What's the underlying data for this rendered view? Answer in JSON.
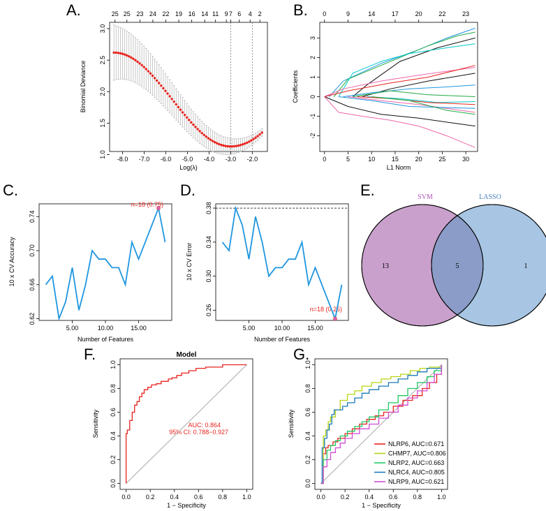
{
  "panels": {
    "A": {
      "letter": "A."
    },
    "B": {
      "letter": "B."
    },
    "C": {
      "letter": "C."
    },
    "D": {
      "letter": "D."
    },
    "E": {
      "letter": "E."
    },
    "F": {
      "letter": "F."
    },
    "G": {
      "letter": "G."
    }
  },
  "colors": {
    "red": "#e8231e",
    "blue": "#1f96e0",
    "grey": "#bbbbbb",
    "svm_fill": "#c9a0cc",
    "lasso_fill": "#a8c6e4",
    "overlap_fill": "#8a9cc7"
  },
  "chart_data": [
    {
      "id": "A",
      "type": "scatter",
      "title": "",
      "xlabel": "Log(λ)",
      "ylabel": "Binomial Deviance",
      "xlim": [
        -8.6,
        -1.3
      ],
      "ylim": [
        1.05,
        3.1
      ],
      "xticks": [
        -8,
        -7,
        -6,
        -5,
        -4,
        -3,
        -2
      ],
      "yticks": [
        1.0,
        1.5,
        2.0,
        2.5,
        3.0
      ],
      "top_ticks": {
        "x": [
          -8.35,
          -7.8,
          -7.2,
          -6.6,
          -6.0,
          -5.4,
          -4.8,
          -4.2,
          -3.7,
          -3.2,
          -3.0,
          -2.6,
          -2.1,
          -1.65
        ],
        "labels": [
          "25",
          "25",
          "23",
          "24",
          "22",
          "19",
          "16",
          "14",
          "11",
          "9",
          "7",
          "6",
          "4",
          "2"
        ]
      },
      "vlines": [
        -3.0,
        -2.0
      ],
      "curve": {
        "x_start": -8.4,
        "x_end": -1.55,
        "count": 70,
        "y_start": 2.62,
        "y_min": 1.13,
        "x_min": -3.0,
        "y_end": 1.35,
        "err_start": 0.44,
        "err_end": 0.06
      }
    },
    {
      "id": "B",
      "type": "line",
      "title": "",
      "xlabel": "L1 Norm",
      "ylabel": "Coefficients",
      "xlim": [
        -1,
        32.5
      ],
      "ylim": [
        -2.8,
        3.8
      ],
      "xticks": [
        0,
        5,
        10,
        15,
        20,
        25,
        30
      ],
      "yticks": [
        -2,
        -1,
        0,
        1,
        2,
        3
      ],
      "top_ticks": {
        "x": [
          0,
          5,
          10,
          15,
          20,
          25,
          30
        ],
        "labels": [
          "0",
          "9",
          "14",
          "17",
          "20",
          "22",
          "23"
        ]
      },
      "series": [
        {
          "color": "#1f96e0",
          "x": [
            1,
            4,
            12,
            20,
            26,
            32
          ],
          "y": [
            0,
            0.8,
            1.7,
            2.4,
            3.0,
            3.5
          ]
        },
        {
          "color": "#22aa44",
          "x": [
            2,
            5,
            14,
            22,
            28,
            32
          ],
          "y": [
            0,
            0.9,
            1.8,
            2.6,
            3.1,
            3.3
          ]
        },
        {
          "color": "#111111",
          "x": [
            6,
            9,
            16,
            24,
            32
          ],
          "y": [
            0,
            0.6,
            1.8,
            2.5,
            3.0
          ]
        },
        {
          "color": "#00c8c8",
          "x": [
            3,
            6,
            12,
            18,
            26,
            32
          ],
          "y": [
            0,
            1.2,
            1.8,
            2.2,
            2.5,
            2.7
          ]
        },
        {
          "color": "#ee66aa",
          "x": [
            0,
            4,
            12,
            20,
            26,
            32
          ],
          "y": [
            0,
            0.4,
            0.8,
            1.1,
            1.3,
            1.5
          ]
        },
        {
          "color": "#e8231e",
          "x": [
            0,
            5,
            14,
            22,
            32
          ],
          "y": [
            0,
            0.3,
            0.7,
            1.0,
            1.6
          ]
        },
        {
          "color": "#111111",
          "x": [
            8,
            14,
            22,
            32
          ],
          "y": [
            0,
            0.4,
            0.8,
            1.2
          ]
        },
        {
          "color": "#1f96e0",
          "x": [
            4,
            10,
            18,
            26,
            32
          ],
          "y": [
            0,
            0.2,
            0.4,
            0.5,
            0.6
          ]
        },
        {
          "color": "#22aa44",
          "x": [
            6,
            14,
            22,
            32
          ],
          "y": [
            0,
            0.3,
            0.1,
            0.0
          ]
        },
        {
          "color": "#00c8c8",
          "x": [
            9,
            16,
            24,
            32
          ],
          "y": [
            0,
            -0.1,
            -0.3,
            -0.25
          ]
        },
        {
          "color": "#ee66aa",
          "x": [
            5,
            12,
            20,
            32
          ],
          "y": [
            0,
            -0.2,
            -0.4,
            -0.8
          ]
        },
        {
          "color": "#1f96e0",
          "x": [
            3,
            10,
            18,
            32
          ],
          "y": [
            0,
            -0.2,
            -0.5,
            -0.6
          ]
        },
        {
          "color": "#e8231e",
          "x": [
            7,
            14,
            22,
            32
          ],
          "y": [
            0,
            -0.1,
            -0.3,
            -0.4
          ]
        },
        {
          "color": "#111111",
          "x": [
            0,
            5,
            12,
            20,
            26,
            32
          ],
          "y": [
            0,
            -0.5,
            -0.9,
            -1.1,
            -1.3,
            -1.5
          ]
        },
        {
          "color": "#ee66aa",
          "x": [
            0,
            3,
            8,
            14,
            20,
            26,
            32
          ],
          "y": [
            0,
            -0.8,
            -1.0,
            -1.2,
            -1.5,
            -2.0,
            -2.6
          ]
        },
        {
          "color": "#22aa44",
          "x": [
            10,
            18,
            26,
            32
          ],
          "y": [
            0,
            -0.2,
            -0.7,
            -0.9
          ]
        }
      ]
    },
    {
      "id": "C",
      "type": "line",
      "title": "",
      "xlabel": "Number of Features",
      "ylabel": "10 x CV Accuracy",
      "xlim": [
        0,
        20
      ],
      "ylim": [
        0.618,
        0.755
      ],
      "xticks": [
        5,
        10,
        15
      ],
      "yticks": [
        0.62,
        0.66,
        0.7,
        0.74
      ],
      "x": [
        1,
        2,
        3,
        4,
        5,
        6,
        7,
        8,
        9,
        10,
        11,
        12,
        13,
        14,
        15,
        16,
        17,
        18,
        19
      ],
      "y": [
        0.66,
        0.67,
        0.62,
        0.64,
        0.68,
        0.63,
        0.66,
        0.7,
        0.69,
        0.69,
        0.68,
        0.68,
        0.66,
        0.71,
        0.69,
        0.71,
        0.73,
        0.75,
        0.71
      ],
      "highlight": {
        "x": 18,
        "y": 0.75
      },
      "annotation": "n=18 (0.75)"
    },
    {
      "id": "D",
      "type": "line",
      "title": "",
      "xlabel": "Number of Features",
      "ylabel": "10 x CV Error",
      "xlim": [
        0,
        20
      ],
      "ylim": [
        0.248,
        0.385
      ],
      "xticks": [
        5,
        10,
        15
      ],
      "yticks": [
        0.26,
        0.3,
        0.34,
        0.38
      ],
      "x": [
        1,
        2,
        3,
        4,
        5,
        6,
        7,
        8,
        9,
        10,
        11,
        12,
        13,
        14,
        15,
        16,
        17,
        18,
        19
      ],
      "y": [
        0.34,
        0.33,
        0.38,
        0.36,
        0.32,
        0.37,
        0.34,
        0.3,
        0.31,
        0.31,
        0.32,
        0.32,
        0.34,
        0.29,
        0.31,
        0.29,
        0.27,
        0.25,
        0.29
      ],
      "hline": 0.38,
      "highlight": {
        "x": 18,
        "y": 0.25
      },
      "annotation": "n=18 (0.25)"
    },
    {
      "id": "E",
      "type": "venn",
      "sets": [
        {
          "name": "SVM",
          "only": "13"
        },
        {
          "name": "LASSO",
          "only": "1"
        }
      ],
      "overlap": "5"
    },
    {
      "id": "F",
      "type": "line",
      "title": "Model",
      "xlabel": "1 − Specificity",
      "ylabel": "Sensitivity",
      "xlim": [
        -0.05,
        1.05
      ],
      "ylim": [
        -0.05,
        1.05
      ],
      "xticks": [
        0.0,
        0.2,
        0.4,
        0.6,
        0.8,
        1.0
      ],
      "yticks": [
        0.0,
        0.2,
        0.4,
        0.6,
        0.8,
        1.0
      ],
      "annotation_lines": [
        "AUC: 0.864",
        "95% CI: 0.788−0.927"
      ],
      "roc": {
        "x": [
          0,
          0,
          0.01,
          0.01,
          0.03,
          0.03,
          0.05,
          0.05,
          0.07,
          0.07,
          0.09,
          0.09,
          0.11,
          0.11,
          0.13,
          0.13,
          0.15,
          0.15,
          0.18,
          0.18,
          0.21,
          0.21,
          0.25,
          0.25,
          0.29,
          0.29,
          0.35,
          0.35,
          0.38,
          0.38,
          0.42,
          0.42,
          0.46,
          0.46,
          0.52,
          0.52,
          0.58,
          0.58,
          0.66,
          0.66,
          0.8,
          0.8,
          1.0
        ],
        "y": [
          0,
          0.42,
          0.42,
          0.45,
          0.45,
          0.53,
          0.53,
          0.6,
          0.6,
          0.66,
          0.66,
          0.69,
          0.69,
          0.73,
          0.73,
          0.76,
          0.76,
          0.79,
          0.79,
          0.81,
          0.81,
          0.83,
          0.83,
          0.84,
          0.84,
          0.86,
          0.86,
          0.88,
          0.88,
          0.89,
          0.89,
          0.91,
          0.91,
          0.93,
          0.93,
          0.95,
          0.95,
          0.97,
          0.97,
          0.98,
          0.98,
          1.0,
          1.0
        ]
      }
    },
    {
      "id": "G",
      "type": "line",
      "title": "",
      "xlabel": "1 − Specificity",
      "ylabel": "Sensitivity",
      "xlim": [
        -0.05,
        1.05
      ],
      "ylim": [
        -0.05,
        1.05
      ],
      "xticks": [
        0.0,
        0.2,
        0.4,
        0.6,
        0.8,
        1.0
      ],
      "yticks": [
        0.0,
        0.2,
        0.4,
        0.6,
        0.8,
        1.0
      ],
      "series": [
        {
          "name": "NLRP6, AUC=0.671",
          "color": "#e8231e",
          "x": [
            0,
            0.02,
            0.04,
            0.06,
            0.1,
            0.14,
            0.2,
            0.26,
            0.32,
            0.38,
            0.45,
            0.52,
            0.6,
            0.68,
            0.76,
            0.84,
            0.9,
            0.96,
            1.0
          ],
          "y": [
            0,
            0.25,
            0.3,
            0.32,
            0.35,
            0.38,
            0.42,
            0.46,
            0.5,
            0.54,
            0.57,
            0.6,
            0.65,
            0.7,
            0.74,
            0.8,
            0.85,
            0.92,
            1.0
          ]
        },
        {
          "name": "CHMP7, AUC=0.806",
          "color": "#b8d414",
          "x": [
            0,
            0.02,
            0.04,
            0.06,
            0.08,
            0.12,
            0.16,
            0.22,
            0.28,
            0.34,
            0.42,
            0.5,
            0.58,
            0.66,
            0.74,
            0.82,
            0.9,
            1.0
          ],
          "y": [
            0,
            0.4,
            0.45,
            0.52,
            0.56,
            0.62,
            0.7,
            0.75,
            0.78,
            0.82,
            0.85,
            0.88,
            0.9,
            0.92,
            0.95,
            0.97,
            0.98,
            1.0
          ]
        },
        {
          "name": "NLRP2, AUC=0.663",
          "color": "#1ec864",
          "x": [
            0,
            0.02,
            0.05,
            0.08,
            0.12,
            0.16,
            0.22,
            0.28,
            0.34,
            0.4,
            0.48,
            0.56,
            0.64,
            0.72,
            0.8,
            0.88,
            0.94,
            1.0
          ],
          "y": [
            0,
            0.2,
            0.28,
            0.32,
            0.36,
            0.4,
            0.44,
            0.48,
            0.52,
            0.56,
            0.62,
            0.68,
            0.74,
            0.8,
            0.85,
            0.9,
            0.95,
            1.0
          ]
        },
        {
          "name": "NLRC4, AUC=0.805",
          "color": "#1a7ab8",
          "x": [
            0,
            0.01,
            0.03,
            0.05,
            0.07,
            0.09,
            0.11,
            0.14,
            0.18,
            0.22,
            0.28,
            0.34,
            0.4,
            0.48,
            0.56,
            0.64,
            0.72,
            0.8,
            0.88,
            1.0
          ],
          "y": [
            0,
            0.3,
            0.38,
            0.45,
            0.5,
            0.58,
            0.62,
            0.62,
            0.65,
            0.68,
            0.72,
            0.76,
            0.79,
            0.82,
            0.85,
            0.88,
            0.91,
            0.94,
            0.97,
            1.0
          ]
        },
        {
          "name": "NLRP9, AUC=0.621",
          "color": "#d24ad4",
          "x": [
            0,
            0.02,
            0.05,
            0.08,
            0.12,
            0.16,
            0.2,
            0.26,
            0.32,
            0.4,
            0.48,
            0.56,
            0.64,
            0.72,
            0.8,
            0.88,
            0.94,
            1.0
          ],
          "y": [
            0,
            0.14,
            0.2,
            0.26,
            0.3,
            0.34,
            0.38,
            0.42,
            0.46,
            0.5,
            0.55,
            0.6,
            0.66,
            0.72,
            0.78,
            0.85,
            0.92,
            1.0
          ]
        }
      ]
    }
  ]
}
